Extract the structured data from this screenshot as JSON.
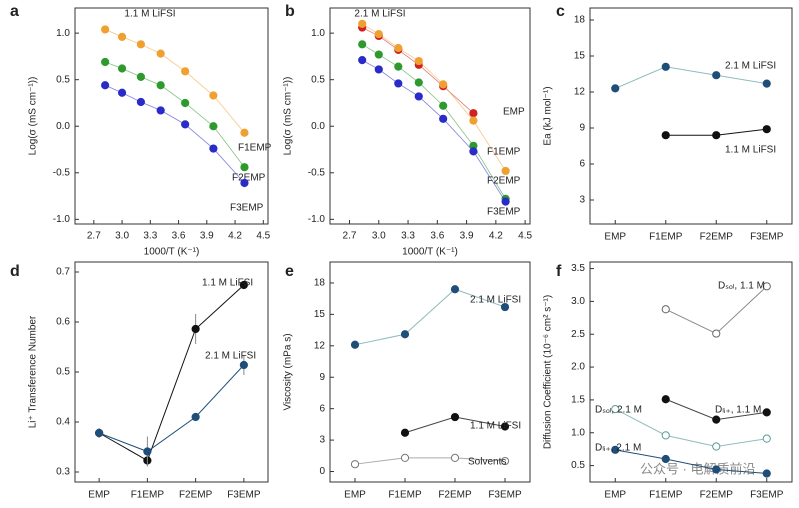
{
  "chart_data": [
    {
      "label": "a",
      "type": "line",
      "annotation": "1.1 M LiFSI",
      "x_label": "1000/T (K⁻¹)",
      "y_label": "Log(σ (mS cm⁻¹))",
      "x": [
        2.82,
        3.0,
        3.2,
        3.41,
        3.67,
        3.97,
        4.3
      ],
      "xlim": [
        2.5,
        4.55
      ],
      "xticks": [
        2.7,
        {
          "value": 3,
          "label": "3.0"
        },
        3.3,
        3.6,
        3.9,
        4.2,
        4.5
      ],
      "ylim": [
        -1.05,
        1.27
      ],
      "yticks": [
        {
          "value": -1,
          "label": "-1.0"
        },
        -0.5,
        {
          "value": 0,
          "label": "0.0"
        },
        0.5,
        {
          "value": 1,
          "label": "1.0"
        }
      ],
      "series": [
        {
          "name": "F1EMP",
          "color": "#f0a030",
          "values": [
            1.04,
            0.96,
            0.88,
            0.78,
            0.59,
            0.33,
            -0.07
          ]
        },
        {
          "name": "F2EMP",
          "color": "#2e9a2e",
          "values": [
            0.69,
            0.62,
            0.53,
            0.44,
            0.25,
            0.0,
            -0.44
          ]
        },
        {
          "name": "F3EMP",
          "color": "#2b2bc8",
          "values": [
            0.44,
            0.36,
            0.26,
            0.17,
            0.02,
            -0.24,
            -0.61
          ]
        }
      ]
    },
    {
      "label": "b",
      "type": "line",
      "annotation": "2.1 M LiFSI",
      "x_label": "1000/T (K⁻¹)",
      "y_label": "Log(σ (mS cm⁻¹))",
      "x": [
        2.83,
        3.0,
        3.2,
        3.41,
        3.66,
        3.97,
        4.3
      ],
      "xlim": [
        2.5,
        4.55
      ],
      "xticks": [
        2.7,
        {
          "value": 3,
          "label": "3.0"
        },
        3.3,
        3.6,
        3.9,
        4.2,
        4.5
      ],
      "ylim": [
        -1.05,
        1.27
      ],
      "yticks": [
        {
          "value": -1,
          "label": "-1.0"
        },
        -0.5,
        {
          "value": 0,
          "label": "0.0"
        },
        0.5,
        {
          "value": 1,
          "label": "1.0"
        }
      ],
      "series": [
        {
          "name": "EMP",
          "color": "#d02020",
          "values": [
            1.06,
            0.97,
            0.82,
            0.66,
            0.43,
            0.14,
            null
          ]
        },
        {
          "name": "F1EMP",
          "color": "#f0a030",
          "values": [
            1.1,
            0.99,
            0.84,
            0.7,
            0.45,
            0.06,
            -0.48
          ]
        },
        {
          "name": "F2EMP",
          "color": "#2e9a2e",
          "values": [
            0.88,
            0.77,
            0.64,
            0.47,
            0.22,
            -0.21,
            -0.78
          ]
        },
        {
          "name": "F3EMP",
          "color": "#2b2bc8",
          "values": [
            0.71,
            0.61,
            0.46,
            0.32,
            0.08,
            -0.27,
            -0.81
          ]
        }
      ]
    },
    {
      "label": "c",
      "type": "category",
      "y_label": "Ea (kJ mol⁻¹)",
      "categories": [
        "EMP",
        "F1EMP",
        "F2EMP",
        "F3EMP"
      ],
      "ylim": [
        1,
        19
      ],
      "yticks": [
        3,
        6,
        9,
        12,
        15,
        18
      ],
      "series": [
        {
          "name": "2.1 M LiFSI",
          "color": "#1f4e79",
          "line_color": "#8fbcbc",
          "values": [
            12.3,
            14.1,
            13.4,
            12.7
          ]
        },
        {
          "name": "1.1 M LiFSI",
          "color": "#111111",
          "line_color": "#111111",
          "values": [
            null,
            8.4,
            8.4,
            8.9
          ]
        }
      ]
    },
    {
      "label": "d",
      "type": "category",
      "y_label": "Li⁺ Transference Number",
      "categories": [
        "EMP",
        "F1EMP",
        "F2EMP",
        "F3EMP"
      ],
      "ylim": [
        0.28,
        0.72
      ],
      "yticks": [
        0.3,
        0.4,
        0.5,
        0.6,
        0.7
      ],
      "series": [
        {
          "name": "1.1 M LiFSI",
          "color": "#111111",
          "line_color": "#111111",
          "values": [
            0.378,
            0.323,
            0.586,
            0.674
          ],
          "errors": [
            0.01,
            0.01,
            0.03,
            0.005
          ]
        },
        {
          "name": "2.1 M LiFSI",
          "color": "#1f4e79",
          "line_color": "#1f4e79",
          "values": [
            0.378,
            0.341,
            0.41,
            0.514
          ],
          "errors": [
            0.01,
            0.03,
            0.005,
            0.02
          ]
        }
      ]
    },
    {
      "label": "e",
      "type": "category",
      "y_label": "Viscosity (mPa s)",
      "categories": [
        "EMP",
        "F1EMP",
        "F2EMP",
        "F3EMP"
      ],
      "ylim": [
        -1,
        20
      ],
      "yticks": [
        0,
        3,
        6,
        9,
        12,
        15,
        18
      ],
      "series": [
        {
          "name": "2.1 M LiFSI",
          "color": "#1f4e79",
          "line_color": "#8fbcbc",
          "values": [
            12.1,
            13.1,
            17.4,
            15.7
          ]
        },
        {
          "name": "1.1 M LiFSI",
          "color": "#111111",
          "line_color": "#444444",
          "values": [
            null,
            3.7,
            5.2,
            4.3
          ]
        },
        {
          "name": "Solvents",
          "color": "#777777",
          "line_color": "#aaaaaa",
          "marker": "open",
          "values": [
            0.7,
            1.3,
            1.3,
            1.0
          ]
        }
      ]
    },
    {
      "label": "f",
      "type": "category",
      "y_label": "Diffusion Coefficient (10⁻⁶ cm² s⁻¹)",
      "categories": [
        "EMP",
        "F1EMP",
        "F2EMP",
        "F3EMP"
      ],
      "ylim": [
        0.25,
        3.6
      ],
      "yticks": [
        0.5,
        {
          "value": 1,
          "label": "1.0"
        },
        1.5,
        {
          "value": 2,
          "label": "2.0"
        },
        2.5,
        {
          "value": 3,
          "label": "3.0"
        },
        3.5
      ],
      "watermark": "公众号 · 电解质前沿",
      "series": [
        {
          "name": "Dₛₒₗ, 1.1 M",
          "color": "#666666",
          "line_color": "#888888",
          "marker": "open",
          "values": [
            null,
            2.88,
            2.51,
            3.23
          ]
        },
        {
          "name": "Dₛₒₗ, 2.1 M",
          "color": "#5a9a9a",
          "line_color": "#8fbcbc",
          "marker": "open",
          "values": [
            1.36,
            0.96,
            0.79,
            0.91
          ]
        },
        {
          "name": "Dₗᵢ₊, 1.1 M",
          "color": "#111111",
          "line_color": "#444444",
          "values": [
            null,
            1.51,
            1.2,
            1.31
          ]
        },
        {
          "name": "Dₗᵢ₊, 2.1 M",
          "color": "#1f4e79",
          "line_color": "#1f4e79",
          "values": [
            0.74,
            0.6,
            0.44,
            0.38
          ]
        }
      ]
    }
  ]
}
